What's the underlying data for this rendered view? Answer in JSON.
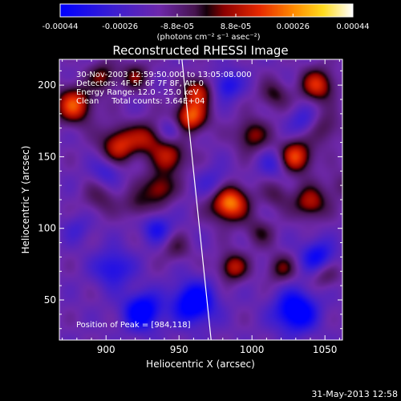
{
  "chart_data": {
    "type": "heatmap",
    "title": "Reconstructed RHESSI Image",
    "xlabel": "Heliocentric X (arcsec)",
    "ylabel": "Heliocentric Y (arcsec)",
    "xlim": [
      868,
      1062
    ],
    "ylim": [
      22,
      218
    ],
    "xticks": [
      900,
      950,
      1000,
      1050
    ],
    "xtick_labels": [
      "900",
      "950",
      "1000",
      "1050"
    ],
    "yticks": [
      50,
      100,
      150,
      200
    ],
    "ytick_labels": [
      "50",
      "100",
      "150",
      "200"
    ],
    "colorbar": {
      "range": [
        -0.00044,
        0.00044
      ],
      "ticks": [
        -0.00044,
        -0.00026,
        -8.8e-05,
        8.8e-05,
        0.00026,
        0.00044
      ],
      "tick_labels": [
        "-0.00044",
        "-0.00026",
        "-8.8e-05",
        "8.8e-05",
        "0.00026",
        "0.00044"
      ],
      "unit_label": "(photons cm⁻² s⁻¹ asec⁻²)"
    },
    "info_lines": [
      "30-Nov-2003 12:59:50.000 to 13:05:08.000",
      "Detectors: 4F 5F 6F 7F 8F, Att 0",
      "Energy Range: 12.0 - 25.0 keV",
      "Clean     Total counts: 3.64E+04"
    ],
    "peak_label": "Position of Peak = [984,118]",
    "peak": [
      984,
      118
    ],
    "limb_line": [
      [
        952,
        218
      ],
      [
        972,
        22
      ]
    ],
    "blobs": [
      [
        984,
        118,
        0.00044,
        9
      ],
      [
        958,
        178,
        0.00036,
        8
      ],
      [
        963,
        196,
        0.00028,
        7
      ],
      [
        878,
        186,
        0.00034,
        9
      ],
      [
        909,
        158,
        0.0003,
        9
      ],
      [
        929,
        163,
        0.00022,
        8
      ],
      [
        944,
        150,
        0.00026,
        8
      ],
      [
        898,
        206,
        0.0002,
        7
      ],
      [
        920,
        206,
        0.00018,
        7
      ],
      [
        1000,
        165,
        0.00022,
        8
      ],
      [
        1030,
        150,
        0.00034,
        8
      ],
      [
        1045,
        200,
        0.0003,
        8
      ],
      [
        1050,
        170,
        0.00014,
        8
      ],
      [
        1015,
        193,
        0.00016,
        7
      ],
      [
        936,
        128,
        0.00024,
        8
      ],
      [
        896,
        121,
        0.00012,
        8
      ],
      [
        921,
        116,
        0.00014,
        7
      ],
      [
        1040,
        118,
        0.00026,
        8
      ],
      [
        1017,
        123,
        0.00012,
        7
      ],
      [
        1005,
        97,
        0.00014,
        7
      ],
      [
        987,
        73,
        0.00026,
        7
      ],
      [
        1020,
        72,
        0.00018,
        7
      ],
      [
        1050,
        68,
        0.00014,
        7
      ],
      [
        948,
        86,
        0.00012,
        7
      ],
      [
        1060,
        130,
        0.0001,
        7
      ],
      [
        960,
        48,
        -0.00038,
        10
      ],
      [
        925,
        42,
        -0.00036,
        9
      ],
      [
        1030,
        42,
        -0.00038,
        10
      ],
      [
        1045,
        80,
        -0.00026,
        8
      ],
      [
        905,
        72,
        -0.00022,
        9
      ],
      [
        975,
        130,
        -0.00016,
        8
      ],
      [
        983,
        200,
        -0.00022,
        7
      ],
      [
        945,
        168,
        -0.00016,
        6
      ],
      [
        900,
        140,
        -0.00014,
        7
      ],
      [
        880,
        100,
        -0.0001,
        7
      ],
      [
        1015,
        145,
        -0.00014,
        7
      ],
      [
        1035,
        175,
        -0.00014,
        7
      ],
      [
        935,
        100,
        -0.0002,
        7
      ]
    ]
  },
  "footer": {
    "timestamp": "31-May-2013 12:58"
  }
}
